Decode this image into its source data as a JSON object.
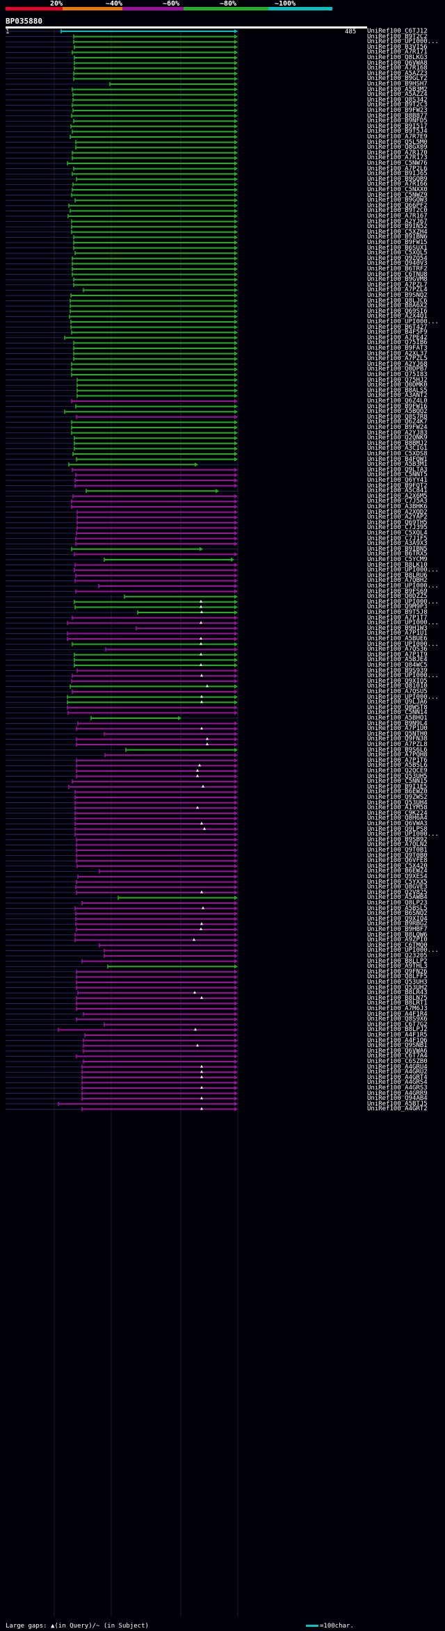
{
  "colors": {
    "bg": "#000008",
    "red": "#e8002a",
    "orange": "#e87a00",
    "magenta": "#a010a0",
    "green": "#20b020",
    "cyan": "#00c0c0",
    "query_line": "#28285a"
  },
  "scale": {
    "labels": [
      "20%",
      "~40%",
      "~60%",
      "~80%",
      "~100%"
    ]
  },
  "query": {
    "title": "BP035880",
    "start": "1",
    "end": "485"
  },
  "footer": {
    "legend": "Large gaps: ▲(in Query)/~ (in Subject)",
    "scale_label": "=100char."
  },
  "hits": [
    {
      "name": "UniRef100_C6TJ12",
      "s": 88,
      "c": "cyan"
    },
    {
      "name": "UniRef100_B9T2C2",
      "s": 106,
      "c": "green"
    },
    {
      "name": "UniRef100_UPI000...",
      "s": 106,
      "c": "green"
    },
    {
      "name": "UniRef100_B3VI56",
      "s": 107,
      "c": "green"
    },
    {
      "name": "UniRef100_A7R171",
      "s": 104,
      "c": "green"
    },
    {
      "name": "UniRef100_Q8LKG3",
      "s": 107,
      "c": "green"
    },
    {
      "name": "UniRef100_Q6VWA8",
      "s": 107,
      "c": "green"
    },
    {
      "name": "UniRef100_A7R168",
      "s": 107,
      "c": "green"
    },
    {
      "name": "UniRef100_A5AZZ3",
      "s": 106,
      "c": "green"
    },
    {
      "name": "UniRef100_B9GLY2",
      "s": 106,
      "c": "green"
    },
    {
      "name": "UniRef100_B9HSH7",
      "s": 158,
      "c": "green"
    },
    {
      "name": "UniRef100_A5B3M2",
      "s": 104,
      "c": "green"
    },
    {
      "name": "UniRef100_A5AZZ4",
      "s": 105,
      "c": "green"
    },
    {
      "name": "UniRef100_Q8S342",
      "s": 105,
      "c": "green"
    },
    {
      "name": "UniRef100_B9T2C3",
      "s": 104,
      "c": "green"
    },
    {
      "name": "UniRef100_B9FW23",
      "s": 105,
      "c": "green"
    },
    {
      "name": "UniRef100_B8B877",
      "s": 103,
      "c": "green"
    },
    {
      "name": "UniRef100_B9NFD5",
      "s": 106,
      "c": "green"
    },
    {
      "name": "UniRef100_B9I517",
      "s": 102,
      "c": "green"
    },
    {
      "name": "UniRef100_B9T5J4",
      "s": 104,
      "c": "green"
    },
    {
      "name": "UniRef100_A7R7E9",
      "s": 101,
      "c": "green"
    },
    {
      "name": "UniRef100_Q5L5M0",
      "s": 109,
      "c": "green"
    },
    {
      "name": "UniRef100_Q8GX09",
      "s": 109,
      "c": "green"
    },
    {
      "name": "UniRef100_A7R170",
      "s": 104,
      "c": "green"
    },
    {
      "name": "UniRef100_A7R173",
      "s": 104,
      "c": "green"
    },
    {
      "name": "UniRef100_C5NW76",
      "s": 97,
      "c": "green"
    },
    {
      "name": "UniRef100_A7P2L6",
      "s": 106,
      "c": "green"
    },
    {
      "name": "UniRef100_B9IJ65",
      "s": 104,
      "c": "green"
    },
    {
      "name": "UniRef100_B9GQB9",
      "s": 110,
      "c": "green"
    },
    {
      "name": "UniRef100_A7R166",
      "s": 105,
      "c": "green"
    },
    {
      "name": "UniRef100_C5NXX0",
      "s": 104,
      "c": "green"
    },
    {
      "name": "UniRef100_C5NWZ9",
      "s": 103,
      "c": "green"
    },
    {
      "name": "UniRef100_B9GQW3",
      "s": 108,
      "c": "green"
    },
    {
      "name": "UniRef100_Q66PF2",
      "s": 99,
      "c": "green"
    },
    {
      "name": "UniRef100_B9T2C0",
      "s": 101,
      "c": "green"
    },
    {
      "name": "UniRef100_A7R167",
      "s": 98,
      "c": "green"
    },
    {
      "name": "UniRef100_A2YJ67",
      "s": 103,
      "c": "green"
    },
    {
      "name": "UniRef100_B9IN52",
      "s": 103,
      "c": "green"
    },
    {
      "name": "UniRef100_C5XZH4",
      "s": 103,
      "c": "green"
    },
    {
      "name": "UniRef100_B9IBN6",
      "s": 106,
      "c": "green"
    },
    {
      "name": "UniRef100_B9FW15",
      "s": 106,
      "c": "green"
    },
    {
      "name": "UniRef100_B6SUX1",
      "s": 106,
      "c": "green"
    },
    {
      "name": "UniRef100_C5XQL5",
      "s": 108,
      "c": "green"
    },
    {
      "name": "UniRef100_Q9ZQ54",
      "s": 104,
      "c": "green"
    },
    {
      "name": "UniRef100_Q940V3",
      "s": 104,
      "c": "green"
    },
    {
      "name": "UniRef100_B6TRF2",
      "s": 104,
      "c": "green"
    },
    {
      "name": "UniRef100_C6TNU8",
      "s": 104,
      "c": "green"
    },
    {
      "name": "UniRef100_B9GVM8",
      "s": 106,
      "c": "green"
    },
    {
      "name": "UniRef100_A7PZL7",
      "s": 106,
      "c": "green"
    },
    {
      "name": "UniRef100_A7PZL4",
      "s": 120,
      "c": "green"
    },
    {
      "name": "UniRef100_B9SNQ2",
      "s": 102,
      "c": "green"
    },
    {
      "name": "UniRef100_Q8LJC6",
      "s": 101,
      "c": "green"
    },
    {
      "name": "UniRef100_B8A6X2",
      "s": 101,
      "c": "green"
    },
    {
      "name": "UniRef100_Q69SI6",
      "s": 101,
      "c": "green"
    },
    {
      "name": "UniRef100_A2X4Q1",
      "s": 100,
      "c": "green"
    },
    {
      "name": "UniRef100_UPI000...",
      "s": 102,
      "c": "green"
    },
    {
      "name": "UniRef100_B6T427",
      "s": 102,
      "c": "green"
    },
    {
      "name": "UniRef100_B4F5F9",
      "s": 103,
      "c": "green"
    },
    {
      "name": "UniRef100_A7PE42",
      "s": 93,
      "c": "green"
    },
    {
      "name": "UniRef100_Q75IB6",
      "s": 106,
      "c": "green"
    },
    {
      "name": "UniRef100_B9FAT3",
      "s": 106,
      "c": "green"
    },
    {
      "name": "UniRef100_A2XL37",
      "s": 106,
      "c": "green"
    },
    {
      "name": "UniRef100_A7PZL5",
      "s": 106,
      "c": "green"
    },
    {
      "name": "UniRef100_A2YJ68",
      "s": 103,
      "c": "green"
    },
    {
      "name": "UniRef100_Q0DPB7",
      "s": 103,
      "c": "green"
    },
    {
      "name": "UniRef100_Q75I83",
      "s": 103,
      "c": "green"
    },
    {
      "name": "UniRef100_Q75HJ2",
      "s": 111,
      "c": "green"
    },
    {
      "name": "UniRef100_Q0DMK0",
      "s": 111,
      "c": "green"
    },
    {
      "name": "UniRef100_B8ALS5",
      "s": 111,
      "c": "green"
    },
    {
      "name": "UniRef100_A3ANT2",
      "s": 111,
      "c": "green"
    },
    {
      "name": "UniRef100_Q6Z4L0",
      "s": 103,
      "c": "magenta"
    },
    {
      "name": "UniRef100_B9FW16",
      "s": 109,
      "c": "green"
    },
    {
      "name": "UniRef100_A5BQQ2",
      "s": 93,
      "c": "green"
    },
    {
      "name": "UniRef100_Q8S7R8",
      "s": 110,
      "c": "magenta"
    },
    {
      "name": "UniRef100_Q6Z4K7",
      "s": 103,
      "c": "green"
    },
    {
      "name": "UniRef100_B9FW24",
      "s": 103,
      "c": "green"
    },
    {
      "name": "UniRef100_A2YJ83",
      "s": 103,
      "c": "green"
    },
    {
      "name": "UniRef100_Q2QNK9",
      "s": 107,
      "c": "green"
    },
    {
      "name": "UniRef100_B8BMJ2",
      "s": 107,
      "c": "green"
    },
    {
      "name": "UniRef100_A3CIG1",
      "s": 107,
      "c": "green"
    },
    {
      "name": "UniRef100_C5XDS8",
      "s": 105,
      "c": "green"
    },
    {
      "name": "UniRef100_B4FQW1",
      "s": 110,
      "c": "green"
    },
    {
      "name": "UniRef100_A5B3M1",
      "s": 99,
      "e": 285,
      "c": "green"
    },
    {
      "name": "UniRef100_Q9LTA3",
      "s": 104,
      "c": "magenta"
    },
    {
      "name": "UniRef100_C5NNT5",
      "s": 109,
      "c": "magenta"
    },
    {
      "name": "UniRef100_Q6YY41",
      "s": 108,
      "c": "magenta"
    },
    {
      "name": "UniRef100_B9FQT2",
      "s": 108,
      "c": "magenta"
    },
    {
      "name": "UniRef100_A5C841",
      "s": 124,
      "e": 315,
      "c": "green"
    },
    {
      "name": "UniRef100_A2X6M5",
      "s": 105,
      "c": "magenta"
    },
    {
      "name": "UniRef100_C7J5A3",
      "s": 103,
      "c": "magenta"
    },
    {
      "name": "UniRef100_A3BHK6",
      "s": 103,
      "c": "magenta"
    },
    {
      "name": "UniRef100_A2XQD2",
      "s": 111,
      "c": "magenta"
    },
    {
      "name": "UniRef100_A2YAP2",
      "s": 111,
      "c": "magenta"
    },
    {
      "name": "UniRef100_Q69TH5",
      "s": 111,
      "c": "magenta"
    },
    {
      "name": "UniRef100_C7J395",
      "s": 111,
      "c": "magenta"
    },
    {
      "name": "UniRef100_C5XQL4",
      "s": 110,
      "c": "magenta"
    },
    {
      "name": "UniRef100_C7J1F5",
      "s": 109,
      "c": "magenta"
    },
    {
      "name": "UniRef100_A3A9X3",
      "s": 109,
      "c": "magenta"
    },
    {
      "name": "UniRef100_B9IBN5",
      "s": 103,
      "e": 292,
      "c": "green"
    },
    {
      "name": "UniRef100_B6TRX5",
      "s": 107,
      "c": "magenta"
    },
    {
      "name": "UniRef100_C5YCM9",
      "s": 150,
      "e": 337,
      "c": "green"
    },
    {
      "name": "UniRef100_B8LK10",
      "s": 108,
      "c": "magenta"
    },
    {
      "name": "UniRef100_UPI000...",
      "s": 107,
      "c": "magenta"
    },
    {
      "name": "UniRef100_B8LRU6",
      "s": 109,
      "c": "magenta"
    },
    {
      "name": "UniRef100_A7QBH2",
      "s": 108,
      "c": "magenta"
    },
    {
      "name": "UniRef100_UPI000...",
      "s": 142,
      "c": "magenta"
    },
    {
      "name": "UniRef100_B9FS69",
      "s": 109,
      "c": "magenta"
    },
    {
      "name": "UniRef100_Q0DZZ5",
      "s": 179,
      "c": "green"
    },
    {
      "name": "UniRef100_UPI000...",
      "s": 107,
      "c": "green",
      "m": 289
    },
    {
      "name": "UniRef100_Q9M9P3",
      "s": 108,
      "c": "green",
      "m": 289
    },
    {
      "name": "UniRef100_B9T5J8",
      "s": 198,
      "c": "green",
      "m": 290
    },
    {
      "name": "UniRef100_A7P1T7",
      "s": 104,
      "c": "magenta"
    },
    {
      "name": "UniRef100_UPI000...",
      "s": 97,
      "c": "magenta",
      "m": 289
    },
    {
      "name": "UniRef100_B9H1W3",
      "s": 196,
      "c": "magenta"
    },
    {
      "name": "UniRef100_A7P1U1",
      "s": 97,
      "c": "magenta"
    },
    {
      "name": "UniRef100_A5BUE6",
      "s": 97,
      "c": "magenta",
      "m": 289
    },
    {
      "name": "UniRef100_UPI000...",
      "s": 104,
      "c": "green",
      "m": 289
    },
    {
      "name": "UniRef100_A7QS36",
      "s": 152,
      "c": "magenta"
    },
    {
      "name": "UniRef100_A7P1T9",
      "s": 107,
      "c": "green",
      "m": 289
    },
    {
      "name": "UniRef100_A5BJE4",
      "s": 107,
      "c": "green"
    },
    {
      "name": "UniRef100_Q84WC5",
      "s": 107,
      "c": "green",
      "m": 289
    },
    {
      "name": "UniRef100_B9S939",
      "s": 111,
      "c": "magenta"
    },
    {
      "name": "UniRef100_UPI000...",
      "s": 104,
      "c": "magenta",
      "m": 290
    },
    {
      "name": "UniRef100_Q9XIQ5",
      "s": 103,
      "c": "magenta"
    },
    {
      "name": "UniRef100_Q81010",
      "s": 101,
      "c": "green",
      "m": 298
    },
    {
      "name": "UniRef100_A7QSU5",
      "s": 104,
      "c": "magenta"
    },
    {
      "name": "UniRef100_UPI000...",
      "s": 97,
      "c": "green",
      "m": 290
    },
    {
      "name": "UniRef100_Q9LJA6",
      "s": 97,
      "c": "green",
      "m": 290
    },
    {
      "name": "UniRef100_Q0WST8",
      "s": 97,
      "c": "magenta"
    },
    {
      "name": "UniRef100_C5NN14",
      "s": 98,
      "c": "magenta"
    },
    {
      "name": "UniRef100_A5BHQ1",
      "s": 131,
      "e": 261,
      "c": "green"
    },
    {
      "name": "UniRef100_B9N9L4",
      "s": 112,
      "c": "magenta"
    },
    {
      "name": "UniRef100_A7P1U0",
      "s": 110,
      "c": "magenta",
      "m": 290
    },
    {
      "name": "UniRef100_Q5NTH0",
      "s": 150,
      "c": "magenta"
    },
    {
      "name": "UniRef100_Q9FN38",
      "s": 110,
      "c": "magenta",
      "m": 298
    },
    {
      "name": "UniRef100_A7PZL8",
      "s": 110,
      "c": "magenta",
      "m": 298
    },
    {
      "name": "UniRef100_B9S6L6",
      "s": 181,
      "c": "green"
    },
    {
      "name": "UniRef100_A7PQH8",
      "s": 151,
      "c": "magenta"
    },
    {
      "name": "UniRef100_A7P1T6",
      "s": 110,
      "c": "magenta"
    },
    {
      "name": "UniRef100_A5BSL6",
      "s": 110,
      "c": "magenta",
      "m": 287
    },
    {
      "name": "UniRef100_Q2QCE9",
      "s": 110,
      "c": "magenta",
      "m": 284
    },
    {
      "name": "UniRef100_Q53UH5",
      "s": 110,
      "c": "magenta",
      "m": 284
    },
    {
      "name": "UniRef100_C5NN15",
      "s": 104,
      "c": "magenta"
    },
    {
      "name": "UniRef100_B9I1E5",
      "s": 99,
      "c": "magenta",
      "m": 292
    },
    {
      "name": "UniRef100_B6EWZ0",
      "s": 108,
      "c": "magenta"
    },
    {
      "name": "UniRef100_Q9ZWS2",
      "s": 108,
      "c": "magenta"
    },
    {
      "name": "UniRef100_Q53UH4",
      "s": 108,
      "c": "magenta"
    },
    {
      "name": "UniRef100_A1YM58",
      "s": 108,
      "c": "magenta",
      "m": 284
    },
    {
      "name": "UniRef100_C9K224",
      "s": 108,
      "c": "magenta"
    },
    {
      "name": "UniRef100_Q8H6A4",
      "s": 108,
      "c": "magenta"
    },
    {
      "name": "UniRef100_Q6VWA3",
      "s": 108,
      "c": "magenta",
      "m": 290
    },
    {
      "name": "UniRef100_Q9LPS8",
      "s": 108,
      "c": "magenta",
      "m": 294
    },
    {
      "name": "UniRef100_UPI000...",
      "s": 108,
      "c": "magenta"
    },
    {
      "name": "UniRef100_B9SB92",
      "s": 110,
      "c": "magenta"
    },
    {
      "name": "UniRef100_A7QLN2",
      "s": 110,
      "c": "magenta"
    },
    {
      "name": "UniRef100_Q9T0B1",
      "s": 110,
      "c": "magenta"
    },
    {
      "name": "UniRef100_Q9T0B0",
      "s": 110,
      "c": "magenta"
    },
    {
      "name": "UniRef100_Q6VFE8",
      "s": 110,
      "c": "magenta"
    },
    {
      "name": "UniRef100_C5X420",
      "s": 111,
      "c": "magenta"
    },
    {
      "name": "UniRef100_B6EWZ4",
      "s": 143,
      "c": "magenta"
    },
    {
      "name": "UniRef100_Q9XES4",
      "s": 112,
      "c": "magenta"
    },
    {
      "name": "UniRef100_C5YXX5",
      "s": 110,
      "c": "magenta"
    },
    {
      "name": "UniRef100_Q8GVE3",
      "s": 109,
      "c": "magenta"
    },
    {
      "name": "UniRef100_Q2V825",
      "s": 110,
      "c": "magenta",
      "m": 290
    },
    {
      "name": "UniRef100_A5AWB4",
      "s": 170,
      "c": "green"
    },
    {
      "name": "UniRef100_Q8LP23",
      "s": 118,
      "c": "magenta"
    },
    {
      "name": "UniRef100_A5BSL5",
      "s": 108,
      "c": "magenta",
      "m": 292
    },
    {
      "name": "UniRef100_B6SNQ2",
      "s": 109,
      "c": "magenta"
    },
    {
      "name": "UniRef100_Q9XIQ4",
      "s": 109,
      "c": "magenta"
    },
    {
      "name": "UniRef100_B9RBG2",
      "s": 109,
      "c": "magenta",
      "m": 290
    },
    {
      "name": "UniRef100_B9HBF7",
      "s": 110,
      "c": "magenta",
      "m": 289
    },
    {
      "name": "UniRef100_B8LQW6",
      "s": 108,
      "c": "magenta"
    },
    {
      "name": "UniRef100_A9ZPI0",
      "s": 108,
      "c": "magenta",
      "m": 279
    },
    {
      "name": "UniRef100_C6TMQ0",
      "s": 143,
      "c": "magenta"
    },
    {
      "name": "UniRef100_UPI000...",
      "s": 150,
      "c": "magenta"
    },
    {
      "name": "UniRef100_Q23205",
      "s": 150,
      "c": "magenta"
    },
    {
      "name": "UniRef100_B8LLP2",
      "s": 118,
      "c": "magenta"
    },
    {
      "name": "UniRef100_A9THL3",
      "s": 155,
      "c": "green"
    },
    {
      "name": "UniRef100_Q9FN26",
      "s": 110,
      "c": "magenta"
    },
    {
      "name": "UniRef100_Q8LFF5",
      "s": 110,
      "c": "magenta"
    },
    {
      "name": "UniRef100_Q53UH3",
      "s": 110,
      "c": "magenta"
    },
    {
      "name": "UniRef100_Q53UH2",
      "s": 110,
      "c": "magenta"
    },
    {
      "name": "UniRef100_B8LR43",
      "s": 112,
      "c": "magenta",
      "m": 280
    },
    {
      "name": "UniRef100_B8LN75",
      "s": 110,
      "c": "magenta",
      "m": 290
    },
    {
      "name": "UniRef100_B8LRT1",
      "s": 110,
      "c": "magenta"
    },
    {
      "name": "UniRef100_A7M6J3",
      "s": 110,
      "c": "magenta"
    },
    {
      "name": "UniRef100_A4F1R4",
      "s": 120,
      "c": "magenta"
    },
    {
      "name": "UniRef100_Q8S9X6",
      "s": 110,
      "c": "magenta"
    },
    {
      "name": "UniRef100_C6T7G2",
      "s": 150,
      "c": "magenta"
    },
    {
      "name": "UniRef100_B8LPJ2",
      "s": 84,
      "c": "magenta",
      "m": 281
    },
    {
      "name": "UniRef100_A4F1R5",
      "s": 122,
      "c": "magenta"
    },
    {
      "name": "UniRef100_A4F1Q6",
      "s": 120,
      "c": "magenta"
    },
    {
      "name": "UniRef100_Q9SNB1",
      "s": 120,
      "c": "magenta",
      "m": 284
    },
    {
      "name": "UniRef100_Q6VWA6",
      "s": 120,
      "c": "magenta"
    },
    {
      "name": "UniRef100_C6T7A4",
      "s": 110,
      "c": "magenta"
    },
    {
      "name": "UniRef100_C6SZB0",
      "s": 120,
      "c": "magenta"
    },
    {
      "name": "UniRef100_A4GRU4",
      "s": 118,
      "c": "magenta",
      "m": 290
    },
    {
      "name": "UniRef100_A4GRU2",
      "s": 118,
      "c": "magenta",
      "m": 290
    },
    {
      "name": "UniRef100_A4GRT4",
      "s": 118,
      "c": "magenta",
      "m": 290
    },
    {
      "name": "UniRef100_A4GRS4",
      "s": 118,
      "c": "magenta"
    },
    {
      "name": "UniRef100_A4GRS3",
      "s": 118,
      "c": "magenta",
      "m": 290
    },
    {
      "name": "UniRef100_A4GRR9",
      "s": 118,
      "c": "magenta"
    },
    {
      "name": "UniRef100_Q94AB4",
      "s": 118,
      "c": "magenta",
      "m": 290
    },
    {
      "name": "UniRef100_A5BTJ5",
      "s": 84,
      "c": "magenta"
    },
    {
      "name": "UniRef100_A4GRT2",
      "s": 118,
      "c": "magenta",
      "m": 290
    }
  ]
}
